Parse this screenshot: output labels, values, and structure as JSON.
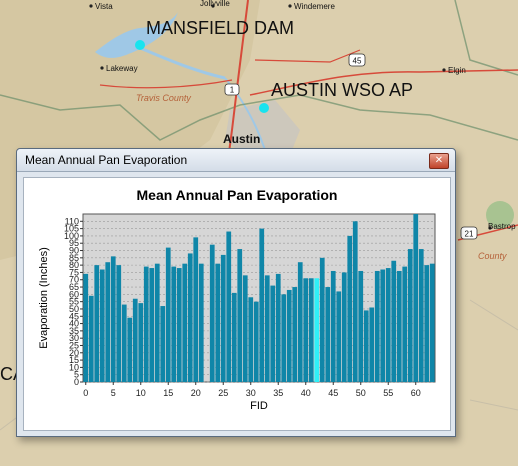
{
  "map": {
    "stations": [
      {
        "name": "MANSFIELD DAM"
      },
      {
        "name": "AUSTIN WSO AP"
      }
    ],
    "place_labels": [
      "Vista",
      "Jollyville",
      "Windemere",
      "Lakeway",
      "Elgin",
      "Austin",
      "Bastrop",
      "Travis County",
      "County",
      "CA"
    ],
    "road_shields": [
      "45",
      "1",
      "21"
    ],
    "colors": {
      "station_point": "#19e3ee",
      "county_label": "#b5623a"
    }
  },
  "window": {
    "title": "Mean Annual Pan Evaporation",
    "close_glyph": "✕"
  },
  "chart_data": {
    "type": "bar",
    "title": "Mean Annual Pan Evaporation",
    "xlabel": "FID",
    "ylabel": "Evaporation (Inches)",
    "xlim": [
      0,
      64
    ],
    "ylim": [
      0,
      115
    ],
    "xticks": [
      0,
      5,
      10,
      15,
      20,
      25,
      30,
      35,
      40,
      45,
      50,
      55,
      60
    ],
    "yticks": [
      0,
      5,
      10,
      15,
      20,
      25,
      30,
      35,
      40,
      45,
      50,
      55,
      60,
      65,
      70,
      75,
      80,
      85,
      90,
      95,
      100,
      105,
      110
    ],
    "x": [
      0,
      1,
      2,
      3,
      4,
      5,
      6,
      7,
      8,
      9,
      10,
      11,
      12,
      13,
      14,
      15,
      16,
      17,
      18,
      19,
      20,
      21,
      22,
      23,
      24,
      25,
      26,
      27,
      28,
      29,
      30,
      31,
      32,
      33,
      34,
      35,
      36,
      37,
      38,
      39,
      40,
      41,
      42,
      43,
      44,
      45,
      46,
      47,
      48,
      49,
      50,
      51,
      52,
      53,
      54,
      55,
      56,
      57,
      58,
      59,
      60,
      61,
      62,
      63
    ],
    "values": [
      74,
      59,
      80,
      77,
      82,
      86,
      80,
      53,
      44,
      57,
      54,
      79,
      78,
      81,
      52,
      92,
      79,
      78,
      81,
      88,
      99,
      81,
      0,
      94,
      81,
      87,
      103,
      61,
      91,
      73,
      58,
      55,
      105,
      73,
      66,
      74,
      60,
      63,
      65,
      82,
      71,
      71,
      71,
      85,
      65,
      76,
      62,
      75,
      100,
      110,
      76,
      49,
      51,
      76,
      77,
      78,
      83,
      76,
      79,
      91,
      115,
      91,
      80,
      81
    ],
    "highlight_indices": [
      42
    ],
    "bar_color": "#0f86a8",
    "highlight_color": "#2ff0f8",
    "grid": "horizontal"
  }
}
